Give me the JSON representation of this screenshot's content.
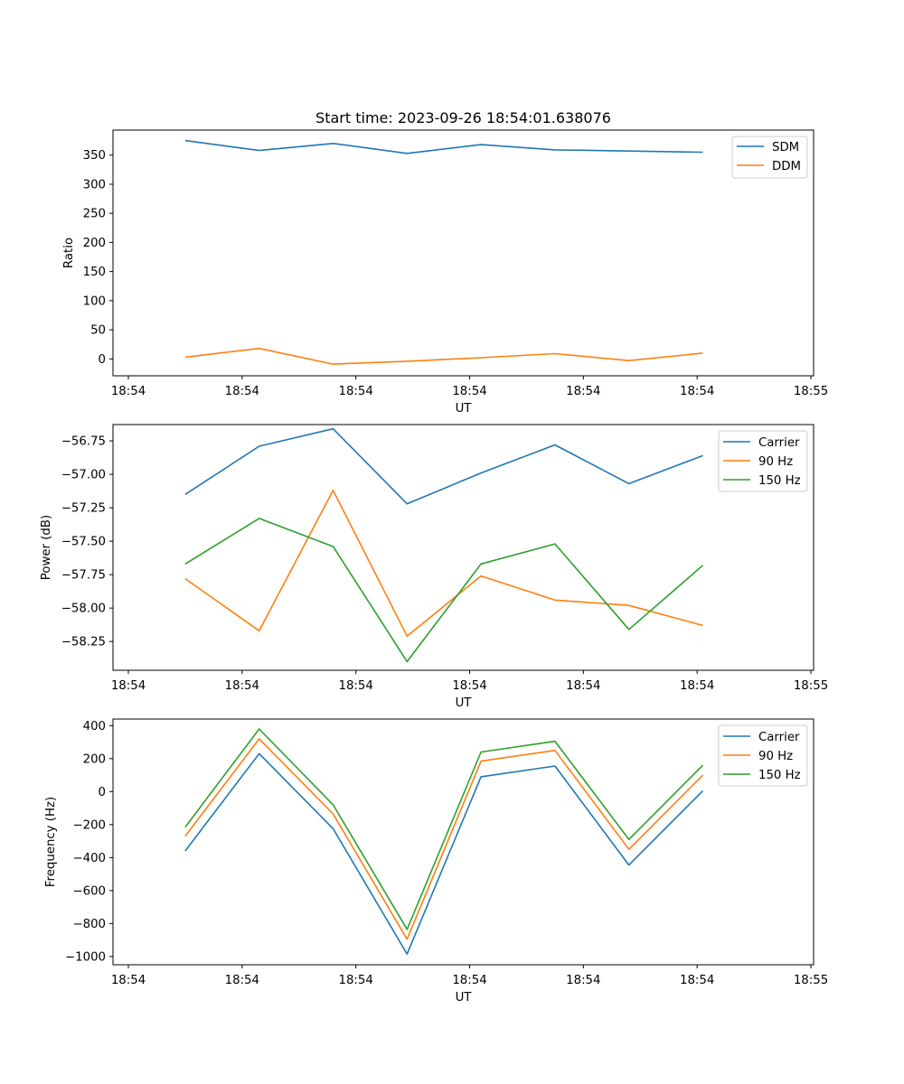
{
  "chart_data": [
    {
      "type": "line",
      "title": "Start time: 2023-09-26 18:54:01.638076",
      "xlabel": "UT",
      "ylabel": "Ratio",
      "xtick_labels": [
        "18:54",
        "18:54",
        "18:54",
        "18:54",
        "18:54",
        "18:54",
        "18:55"
      ],
      "yticks": [
        0,
        50,
        100,
        150,
        200,
        250,
        300,
        350
      ],
      "ylim": [
        -29,
        393
      ],
      "x": [
        0.5,
        1.15,
        1.8,
        2.45,
        3.1,
        3.75,
        4.4,
        5.05
      ],
      "xlim": [
        0,
        6
      ],
      "xticks": [
        0,
        1,
        2,
        3,
        4,
        5,
        6
      ],
      "grid": false,
      "legend_position": "top-right",
      "series": [
        {
          "name": "SDM",
          "color": "#1f77b4",
          "values": [
            375,
            358,
            370,
            353,
            368,
            359,
            357,
            355
          ]
        },
        {
          "name": "DDM",
          "color": "#ff7f0e",
          "values": [
            3,
            18,
            -9,
            -4,
            2,
            9,
            -3,
            10
          ]
        }
      ]
    },
    {
      "type": "line",
      "title": "",
      "xlabel": "UT",
      "ylabel": "Power (dB)",
      "xtick_labels": [
        "18:54",
        "18:54",
        "18:54",
        "18:54",
        "18:54",
        "18:54",
        "18:55"
      ],
      "yticks": [
        -58.25,
        -58.0,
        -57.75,
        -57.5,
        -57.25,
        -57.0,
        -56.75
      ],
      "ytick_labels": [
        "−58.25",
        "−58.00",
        "−57.75",
        "−57.50",
        "−57.25",
        "−57.00",
        "−56.75"
      ],
      "ylim": [
        -58.465,
        -56.628
      ],
      "x": [
        0.5,
        1.15,
        1.8,
        2.45,
        3.1,
        3.75,
        4.4,
        5.05
      ],
      "xlim": [
        0,
        6
      ],
      "xticks": [
        0,
        1,
        2,
        3,
        4,
        5,
        6
      ],
      "grid": false,
      "legend_position": "top-right",
      "series": [
        {
          "name": "Carrier",
          "color": "#1f77b4",
          "values": [
            -57.15,
            -56.79,
            -56.66,
            -57.22,
            -56.99,
            -56.78,
            -57.07,
            -56.86
          ]
        },
        {
          "name": "90 Hz",
          "color": "#ff7f0e",
          "values": [
            -57.78,
            -58.17,
            -57.12,
            -58.21,
            -57.76,
            -57.94,
            -57.98,
            -58.13
          ]
        },
        {
          "name": "150 Hz",
          "color": "#2ca02c",
          "values": [
            -57.67,
            -57.33,
            -57.54,
            -58.4,
            -57.67,
            -57.52,
            -58.16,
            -57.68
          ]
        }
      ]
    },
    {
      "type": "line",
      "title": "",
      "xlabel": "UT",
      "ylabel": "Frequency (Hz)",
      "xtick_labels": [
        "18:54",
        "18:54",
        "18:54",
        "18:54",
        "18:54",
        "18:54",
        "18:55"
      ],
      "yticks": [
        -1000,
        -800,
        -600,
        -400,
        -200,
        0,
        200,
        400
      ],
      "ytick_labels": [
        "−1000",
        "−800",
        "−600",
        "−400",
        "−200",
        "0",
        "200",
        "400"
      ],
      "ylim": [
        -1050,
        440
      ],
      "x": [
        0.5,
        1.15,
        1.8,
        2.45,
        3.1,
        3.75,
        4.4,
        5.05
      ],
      "xlim": [
        0,
        6
      ],
      "xticks": [
        0,
        1,
        2,
        3,
        4,
        5,
        6
      ],
      "grid": false,
      "legend_position": "top-right",
      "series": [
        {
          "name": "Carrier",
          "color": "#1f77b4",
          "values": [
            -360,
            230,
            -225,
            -985,
            90,
            155,
            -445,
            5
          ]
        },
        {
          "name": "90 Hz",
          "color": "#ff7f0e",
          "values": [
            -270,
            320,
            -135,
            -895,
            185,
            250,
            -350,
            100
          ]
        },
        {
          "name": "150 Hz",
          "color": "#2ca02c",
          "values": [
            -215,
            380,
            -80,
            -835,
            240,
            305,
            -290,
            160
          ]
        }
      ]
    }
  ]
}
